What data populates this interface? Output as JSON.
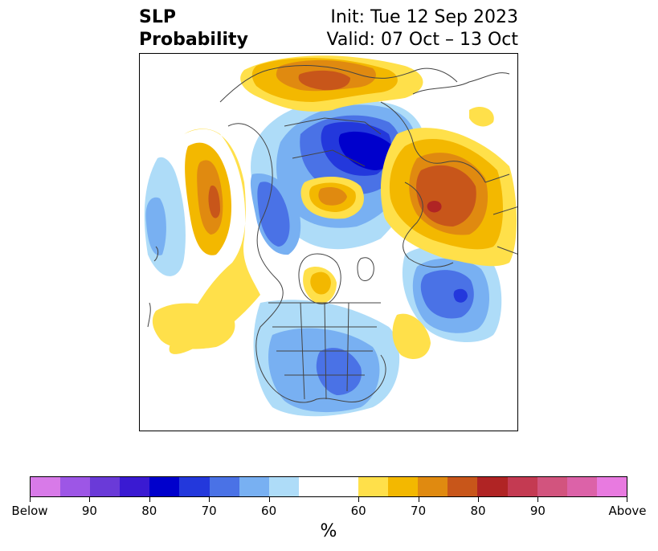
{
  "title": {
    "left_line1": "SLP",
    "left_line2": "Probability",
    "right_line1": "Init: Tue 12 Sep 2023",
    "right_line2": "Valid: 07 Oct – 13 Oct"
  },
  "colorbar": {
    "colors": [
      "#d87ae8",
      "#9d56e6",
      "#6a3ad8",
      "#3a1ad2",
      "#0000cc",
      "#2338dc",
      "#4a72e6",
      "#78b0f2",
      "#aedcf8",
      "#ffffff",
      "#ffe04a",
      "#f3b800",
      "#e08a10",
      "#c8561a",
      "#b02424",
      "#c43a52",
      "#d2547e",
      "#dc62a8",
      "#e87ae0"
    ],
    "tick_labels": [
      "Below",
      "90",
      "80",
      "70",
      "60",
      "60",
      "70",
      "80",
      "90",
      "Above"
    ],
    "unit": "%"
  },
  "map": {
    "projection": "polar stereographic, Northern Hemisphere",
    "palette": {
      "light_blue": "#aedcf8",
      "mid_blue": "#78b0f2",
      "blue": "#4a72e6",
      "dark_blue": "#2338dc",
      "deep_blue": "#0000cc",
      "yellow": "#ffe04a",
      "gold": "#f3b800",
      "orange": "#e08a10",
      "rust": "#c8561a",
      "red": "#b02424"
    }
  }
}
